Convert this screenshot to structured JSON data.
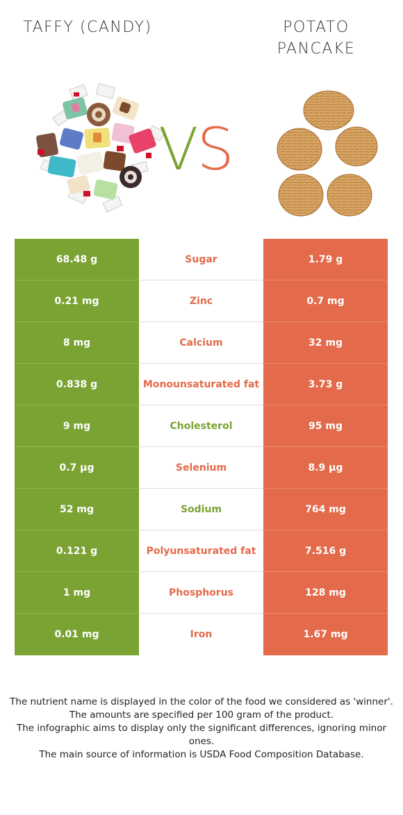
{
  "header": {
    "left_title": "TAFFY (CANDY)",
    "right_title": "POTATO PANCAKE",
    "vs_v": "V",
    "vs_s": "S"
  },
  "colors": {
    "winner_left": "#7aa333",
    "winner_right": "#e36a4a"
  },
  "rows": [
    {
      "left": "68.48 g",
      "nutrient": "Sugar",
      "right": "1.79 g",
      "winner": "right"
    },
    {
      "left": "0.21 mg",
      "nutrient": "Zinc",
      "right": "0.7 mg",
      "winner": "right"
    },
    {
      "left": "8 mg",
      "nutrient": "Calcium",
      "right": "32 mg",
      "winner": "right"
    },
    {
      "left": "0.838 g",
      "nutrient": "Monounsaturated fat",
      "right": "3.73 g",
      "winner": "right"
    },
    {
      "left": "9 mg",
      "nutrient": "Cholesterol",
      "right": "95 mg",
      "winner": "left"
    },
    {
      "left": "0.7 µg",
      "nutrient": "Selenium",
      "right": "8.9 µg",
      "winner": "right"
    },
    {
      "left": "52 mg",
      "nutrient": "Sodium",
      "right": "764 mg",
      "winner": "left"
    },
    {
      "left": "0.121 g",
      "nutrient": "Polyunsaturated fat",
      "right": "7.516 g",
      "winner": "right"
    },
    {
      "left": "1 mg",
      "nutrient": "Phosphorus",
      "right": "128 mg",
      "winner": "right"
    },
    {
      "left": "0.01 mg",
      "nutrient": "Iron",
      "right": "1.67 mg",
      "winner": "right"
    }
  ],
  "footer": {
    "line1": "The nutrient name is displayed in the color of the food we considered as 'winner'.",
    "line2": "The amounts are specified per 100 gram of the product.",
    "line3": "The infographic aims to display only the significant differences, ignoring minor ones.",
    "line4": "The main source of information is USDA Food Composition Database."
  }
}
